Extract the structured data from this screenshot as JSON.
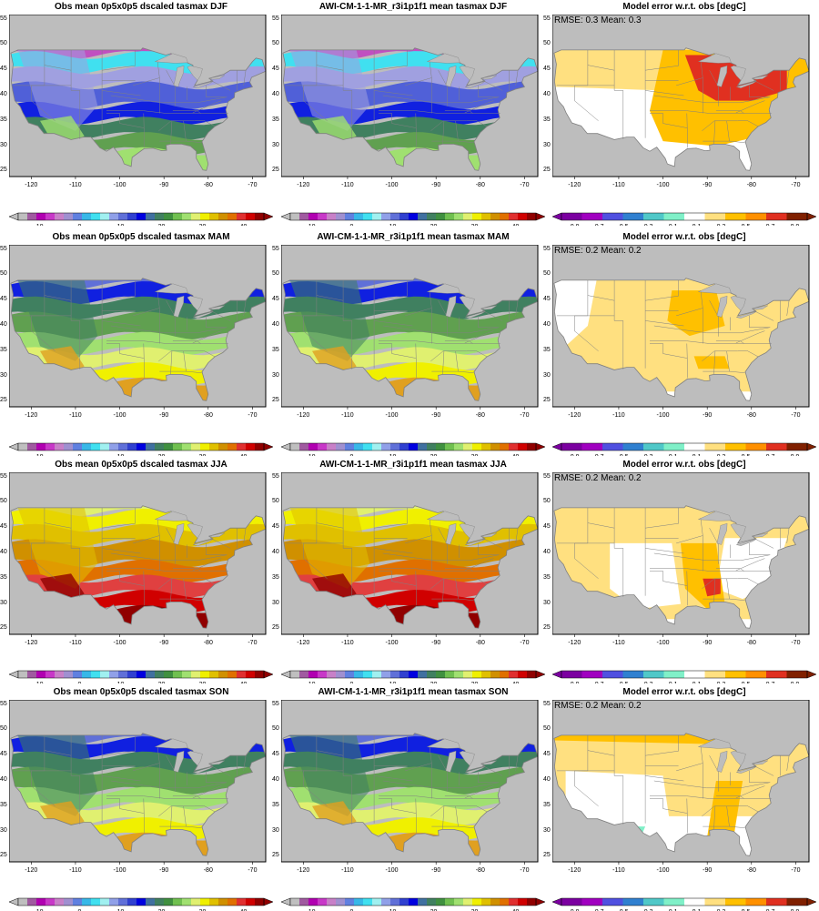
{
  "rows": [
    {
      "season": "DJF",
      "obs_title": "Obs mean 0p5x0p5 dscaled tasmax DJF",
      "model_title": "AWI-CM-1-1-MR_r3i1p1f1 mean tasmax DJF",
      "err_title": "Model error w.r.t. obs [degC]",
      "stats": "RMSE: 0.3  Mean: 0.3"
    },
    {
      "season": "MAM",
      "obs_title": "Obs mean 0p5x0p5 dscaled tasmax MAM",
      "model_title": "AWI-CM-1-1-MR_r3i1p1f1 mean tasmax MAM",
      "err_title": "Model error w.r.t. obs [degC]",
      "stats": "RMSE: 0.2  Mean: 0.2"
    },
    {
      "season": "JJA",
      "obs_title": "Obs mean 0p5x0p5 dscaled tasmax JJA",
      "model_title": "AWI-CM-1-1-MR_r3i1p1f1 mean tasmax JJA",
      "err_title": "Model error w.r.t. obs [degC]",
      "stats": "RMSE: 0.2  Mean: 0.2"
    },
    {
      "season": "SON",
      "obs_title": "Obs mean 0p5x0p5 dscaled tasmax SON",
      "model_title": "AWI-CM-1-1-MR_r3i1p1f1 mean tasmax SON",
      "err_title": "Model error w.r.t. obs [degC]",
      "stats": "RMSE: 0.2  Mean: 0.2"
    }
  ],
  "lon_ticks": [
    "-120",
    "-110",
    "-100",
    "-90",
    "-80",
    "-70"
  ],
  "lat_ticks": [
    "55",
    "50",
    "45",
    "40",
    "35",
    "30",
    "25"
  ],
  "temp_colorbar": {
    "labels": [
      "-10",
      "0",
      "10",
      "20",
      "30",
      "40"
    ],
    "colors": [
      "#bfbfbf",
      "#a05aa0",
      "#b100b1",
      "#c838c8",
      "#c880c8",
      "#a090d0",
      "#6080e0",
      "#38b8e8",
      "#40e0f0",
      "#a0f0f0",
      "#90a0e8",
      "#6070d8",
      "#3040d0",
      "#0000e0",
      "#4070a0",
      "#408060",
      "#409040",
      "#70c050",
      "#a0e070",
      "#e0f070",
      "#f0f000",
      "#e0c000",
      "#d09000",
      "#e07000",
      "#e03030",
      "#d00000",
      "#900000"
    ]
  },
  "err_colorbar": {
    "labels": [
      "-0.9",
      "-0.7",
      "-0.5",
      "-0.3",
      "-0.1",
      "0.1",
      "0.3",
      "0.5",
      "0.7",
      "0.9"
    ],
    "colors": [
      "#7b00a0",
      "#a000c0",
      "#5050e0",
      "#3080d0",
      "#50c8c8",
      "#80f0c8",
      "#ffffff",
      "#ffe080",
      "#ffc000",
      "#ff9000",
      "#e03020",
      "#802000"
    ]
  },
  "map_colors": {
    "ocean": "#bdbdbd",
    "border": "#808080",
    "DJF": [
      "#b000b0",
      "#c050c0",
      "#40e0f0",
      "#a0a0e0",
      "#5060d8",
      "#1020e0",
      "#408060",
      "#60a050",
      "#a0e070"
    ],
    "MAM": [
      "#90a0e8",
      "#6070d8",
      "#1020e0",
      "#408060",
      "#60a050",
      "#a0e070",
      "#e0f070",
      "#f0f000",
      "#e0a020"
    ],
    "JJA": [
      "#a0e070",
      "#e0f070",
      "#f0f000",
      "#e0c000",
      "#d09000",
      "#e07000",
      "#e04040",
      "#d00000",
      "#900000"
    ],
    "SON": [
      "#a0a0e0",
      "#6070d8",
      "#1020e0",
      "#408060",
      "#60a050",
      "#a0e070",
      "#e0f070",
      "#f0f000",
      "#e0a020"
    ],
    "err": {
      "white": "#ffffff",
      "light": "#ffe080",
      "mid": "#ffc000",
      "high": "#e03020",
      "cyan": "#80f0c8"
    }
  }
}
